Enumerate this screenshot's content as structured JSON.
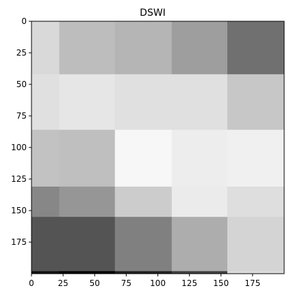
{
  "chart_data": {
    "type": "heatmap",
    "title": "DSWI",
    "xlabel": "",
    "ylabel": "",
    "colormap": "gray",
    "extent": [
      0,
      200
    ],
    "x_edges": [
      0,
      22,
      66,
      111,
      155,
      200
    ],
    "y_edges": [
      0,
      9,
      42,
      86,
      131,
      155,
      198,
      200
    ],
    "xticks": [
      0,
      25,
      50,
      75,
      100,
      125,
      150,
      175
    ],
    "yticks": [
      0,
      25,
      50,
      75,
      100,
      125,
      150,
      175
    ],
    "values": [
      [
        0.85,
        0.74,
        0.71,
        0.62,
        0.44
      ],
      [
        0.85,
        0.74,
        0.71,
        0.62,
        0.44
      ],
      [
        0.88,
        0.9,
        0.88,
        0.88,
        0.78
      ],
      [
        0.76,
        0.75,
        0.97,
        0.93,
        0.94
      ],
      [
        0.53,
        0.59,
        0.8,
        0.92,
        0.87
      ],
      [
        0.33,
        0.33,
        0.5,
        0.68,
        0.83
      ],
      [
        0.07,
        0.0,
        0.13,
        0.25,
        0.86
      ]
    ],
    "bottom_row_values": [
      0.12,
      0.2,
      0.26,
      0.18,
      0.24
    ]
  }
}
